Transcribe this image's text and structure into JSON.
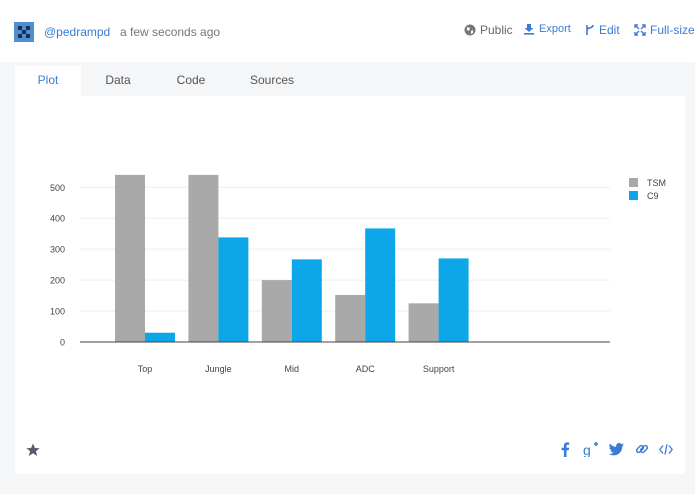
{
  "header": {
    "username": "@pedrampd",
    "timestamp": "a few seconds ago",
    "public_label": "Public",
    "export_label": "Export",
    "edit_label": "Edit",
    "fullsize_label": "Full-size"
  },
  "tabs": [
    {
      "label": "Plot",
      "active": true
    },
    {
      "label": "Data",
      "active": false
    },
    {
      "label": "Code",
      "active": false
    },
    {
      "label": "Sources",
      "active": false
    }
  ],
  "chart_data": {
    "type": "bar",
    "categories": [
      "Top",
      "Jungle",
      "Mid",
      "ADC",
      "Support"
    ],
    "series": [
      {
        "name": "TSM",
        "values": [
          540,
          540,
          200,
          152,
          125
        ],
        "color": "#a9a9a9"
      },
      {
        "name": "C9",
        "values": [
          30,
          338,
          267,
          367,
          270
        ],
        "color": "#0ba7e8"
      }
    ],
    "yticks": [
      0,
      100,
      200,
      300,
      400,
      500
    ],
    "ylim": [
      0,
      600
    ],
    "grid": true,
    "legend_position": "top-right"
  },
  "footer": {
    "icons": [
      "star-icon",
      "facebook-icon",
      "google-plus-icon",
      "twitter-icon",
      "link-icon",
      "embed-code-icon"
    ]
  }
}
